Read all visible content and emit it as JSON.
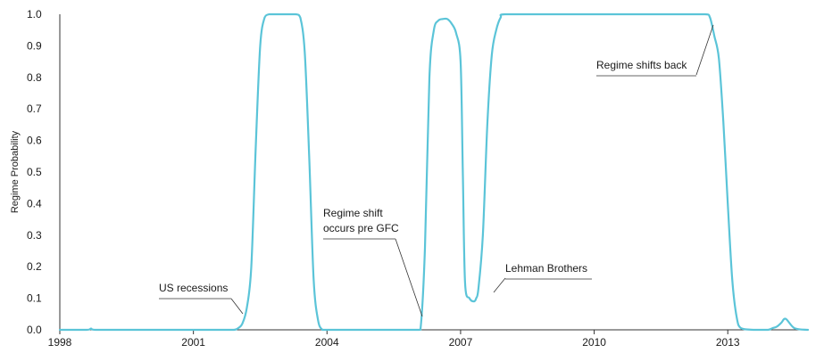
{
  "chart_data": {
    "type": "line",
    "title": "",
    "xlabel": "",
    "ylabel": "Regime Probability",
    "xlim": [
      1998,
      2014.8
    ],
    "ylim": [
      0,
      1
    ],
    "xticks": [
      1998,
      2001,
      2004,
      2007,
      2010,
      2013
    ],
    "yticks": [
      "0.0",
      "0.1",
      "0.2",
      "0.3",
      "0.4",
      "0.5",
      "0.6",
      "0.7",
      "0.8",
      "0.9",
      "1.0"
    ],
    "grid": false,
    "legend": "none",
    "color": "#5bc4d8",
    "series": [
      {
        "x": [
          1998.0,
          1998.6,
          1998.7,
          1998.8,
          1999.5,
          2001.5,
          2001.9,
          2002.0,
          2002.1,
          2002.2,
          2002.3,
          2002.4,
          2002.5,
          2002.6,
          2002.7,
          2002.8,
          2003.0,
          2003.3,
          2003.4,
          2003.5,
          2003.6,
          2003.7,
          2003.8,
          2003.9,
          2004.0,
          2005.0,
          2006.0,
          2006.1,
          2006.2,
          2006.3,
          2006.4,
          2006.5,
          2006.6,
          2006.7,
          2006.8,
          2006.9,
          2007.0,
          2007.05,
          2007.1,
          2007.2,
          2007.3,
          2007.35,
          2007.4,
          2007.5,
          2007.6,
          2007.7,
          2007.8,
          2007.9,
          2008.0,
          2009.0,
          2010.0,
          2011.0,
          2012.0,
          2012.5,
          2012.6,
          2012.7,
          2012.8,
          2012.9,
          2013.0,
          2013.1,
          2013.2,
          2013.3,
          2013.6,
          2013.9,
          2014.0,
          2014.1,
          2014.2,
          2014.3,
          2014.5,
          2014.8
        ],
        "y": [
          0.0,
          0.0,
          0.004,
          0.0,
          0.0,
          0.0,
          0.0,
          0.005,
          0.02,
          0.07,
          0.2,
          0.58,
          0.9,
          0.99,
          1.0,
          1.0,
          1.0,
          1.0,
          0.99,
          0.88,
          0.55,
          0.16,
          0.03,
          0.0,
          0.0,
          0.0,
          0.0,
          0.003,
          0.26,
          0.8,
          0.95,
          0.98,
          0.985,
          0.985,
          0.97,
          0.94,
          0.85,
          0.5,
          0.15,
          0.1,
          0.09,
          0.1,
          0.13,
          0.3,
          0.65,
          0.87,
          0.95,
          0.99,
          1.0,
          1.0,
          1.0,
          1.0,
          1.0,
          1.0,
          0.99,
          0.93,
          0.86,
          0.66,
          0.4,
          0.16,
          0.04,
          0.005,
          0.0,
          0.0,
          0.005,
          0.01,
          0.022,
          0.035,
          0.005,
          0.0
        ]
      }
    ],
    "annotations": [
      {
        "text": "US recessions",
        "x": 2001.9,
        "y": 0.005
      },
      {
        "text": "Regime shift\noccurs pre GFC",
        "x": 2006.0,
        "y": 0.01
      },
      {
        "text": "Lehman Brothers",
        "x": 2007.3,
        "y": 0.12
      },
      {
        "text": "Regime shifts back",
        "x": 2012.3,
        "y": 0.97
      }
    ]
  }
}
